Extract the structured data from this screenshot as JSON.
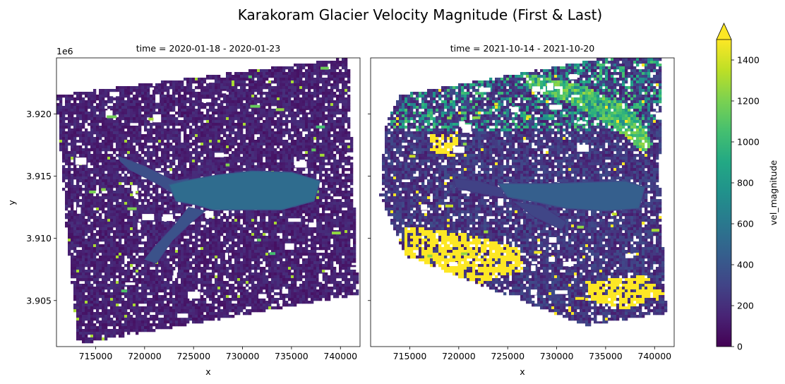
{
  "chart_data": {
    "type": "heatmap",
    "title": "Karakoram Glacier Velocity Magnitude (First & Last)",
    "xlabel": "x",
    "ylabel": "y",
    "y_offset_label": "1e6",
    "xlim": [
      711000,
      742000
    ],
    "ylim": [
      3901300,
      3924500
    ],
    "x_ticks": [
      715000,
      720000,
      725000,
      730000,
      735000,
      740000
    ],
    "x_tick_labels": [
      "715000",
      "720000",
      "725000",
      "730000",
      "735000",
      "740000"
    ],
    "y_ticks": [
      3905000,
      3910000,
      3915000,
      3920000
    ],
    "y_tick_labels": [
      "3.905",
      "3.910",
      "3.915",
      "3.920"
    ],
    "panels": [
      {
        "title": "time = 2020-01-18 - 2020-01-23",
        "footprint": [
          [
            711000,
            3921500
          ],
          [
            740800,
            3924500
          ],
          [
            741800,
            3905500
          ],
          [
            713200,
            3901500
          ],
          [
            712000,
            3911000
          ]
        ],
        "background_value": 130,
        "glacier": {
          "trunk": [
            [
              724000,
              3914600
            ],
            [
              727500,
              3915100
            ],
            [
              731000,
              3915400
            ],
            [
              735000,
              3915300
            ],
            [
              737900,
              3914600
            ],
            [
              737300,
              3913000
            ],
            [
              734000,
              3912300
            ],
            [
              730000,
              3912300
            ],
            [
              727000,
              3912300
            ],
            [
              725200,
              3912700
            ],
            [
              723200,
              3913000
            ],
            [
              722500,
              3914300
            ]
          ],
          "upper_branch": [
            [
              717300,
              3916600
            ],
            [
              720000,
              3915800
            ],
            [
              723000,
              3914600
            ],
            [
              724500,
              3914800
            ],
            [
              723500,
              3913300
            ],
            [
              721500,
              3914300
            ],
            [
              718500,
              3915500
            ],
            [
              717500,
              3916200
            ]
          ],
          "lower_branch": [
            [
              724500,
              3912500
            ],
            [
              723000,
              3911000
            ],
            [
              721000,
              3909300
            ],
            [
              720000,
              3908300
            ],
            [
              721200,
              3908000
            ],
            [
              722800,
              3909800
            ],
            [
              724800,
              3911300
            ],
            [
              726200,
              3912200
            ]
          ],
          "value_range": [
            420,
            640
          ]
        },
        "fast_patches_value": 1300
      },
      {
        "title": "time = 2021-10-14 - 2021-10-20",
        "footprint": [
          [
            714000,
            3921500
          ],
          [
            735000,
            3924500
          ],
          [
            740800,
            3924500
          ],
          [
            740500,
            3915000
          ],
          [
            741200,
            3904000
          ],
          [
            733000,
            3903000
          ],
          [
            714500,
            3908600
          ],
          [
            712000,
            3913500
          ],
          [
            712500,
            3919000
          ]
        ],
        "background_value": 220,
        "glacier": {
          "trunk": [
            [
              724000,
              3914400
            ],
            [
              729000,
              3914400
            ],
            [
              733000,
              3914500
            ],
            [
              737000,
              3914600
            ],
            [
              739000,
              3914100
            ],
            [
              738400,
              3912400
            ],
            [
              735000,
              3912200
            ],
            [
              731000,
              3912400
            ],
            [
              728000,
              3912900
            ],
            [
              725000,
              3913300
            ]
          ],
          "upper_branch": [
            [
              719500,
              3914800
            ],
            [
              722000,
              3914600
            ],
            [
              724500,
              3914000
            ],
            [
              724500,
              3913300
            ],
            [
              721500,
              3913700
            ],
            [
              719700,
              3914100
            ]
          ],
          "lower_branch": [
            [
              725500,
              3913000
            ],
            [
              727500,
              3911800
            ],
            [
              730500,
              3910700
            ],
            [
              731000,
              3911300
            ],
            [
              728500,
              3912600
            ]
          ],
          "value_range": [
            350,
            550
          ]
        },
        "high_ridge": [
          [
            727000,
            3923200
          ],
          [
            733000,
            3922200
          ],
          [
            738000,
            3920200
          ],
          [
            739800,
            3917600
          ],
          [
            739000,
            3916800
          ],
          [
            736000,
            3918800
          ],
          [
            732000,
            3920600
          ],
          [
            727000,
            3922200
          ]
        ],
        "high_ridge_value": 1100,
        "fast_patches_value": 1500,
        "yellow_zones": [
          [
            [
              714500,
              3911000
            ],
            [
              721000,
              3910300
            ],
            [
              726000,
              3909200
            ],
            [
              727000,
              3907500
            ],
            [
              722000,
              3906300
            ],
            [
              716000,
              3907200
            ],
            [
              714500,
              3908800
            ]
          ],
          [
            [
              733000,
              3906500
            ],
            [
              739000,
              3907000
            ],
            [
              741000,
              3905500
            ],
            [
              737000,
              3904300
            ],
            [
              733500,
              3905000
            ]
          ],
          [
            [
              717000,
              3918500
            ],
            [
              720000,
              3918000
            ],
            [
              719500,
              3916500
            ],
            [
              717000,
              3917000
            ]
          ]
        ]
      }
    ],
    "colorbar": {
      "label": "vel_magnitude",
      "vmin": 0,
      "vmax": 1500,
      "ticks": [
        0,
        200,
        400,
        600,
        800,
        1000,
        1200,
        1400
      ],
      "tick_labels": [
        "0",
        "200",
        "400",
        "600",
        "800",
        "1000",
        "1200",
        "1400"
      ],
      "extend": "max",
      "colormap": "viridis"
    }
  }
}
